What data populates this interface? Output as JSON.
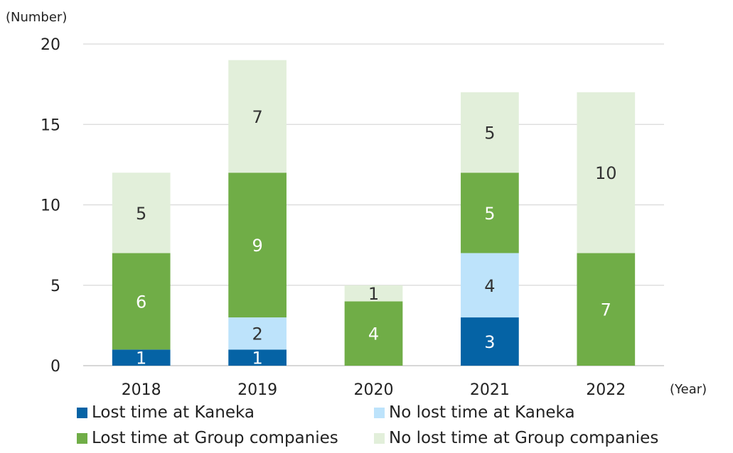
{
  "chart_data": {
    "type": "bar",
    "stacked": true,
    "ylabel": "(Number)",
    "xlabel": "(Year)",
    "ylim": [
      0,
      20
    ],
    "yticks": [
      0,
      5,
      10,
      15,
      20
    ],
    "grid": true,
    "legend_position": "bottom",
    "categories": [
      "2018",
      "2019",
      "2020",
      "2021",
      "2022"
    ],
    "series": [
      {
        "name": "Lost time at Kaneka",
        "color": "#0563a5",
        "label_color": "#ffffff",
        "values": [
          1,
          1,
          0,
          3,
          0
        ]
      },
      {
        "name": "No lost time at Kaneka",
        "color": "#bde3fb",
        "label_color": "#333333",
        "values": [
          0,
          2,
          0,
          4,
          0
        ]
      },
      {
        "name": "Lost time at Group companies",
        "color": "#70ad47",
        "label_color": "#ffffff",
        "values": [
          6,
          9,
          4,
          5,
          7
        ]
      },
      {
        "name": "No lost time at Group companies",
        "color": "#e2efda",
        "label_color": "#333333",
        "values": [
          5,
          7,
          1,
          5,
          10
        ]
      }
    ]
  }
}
